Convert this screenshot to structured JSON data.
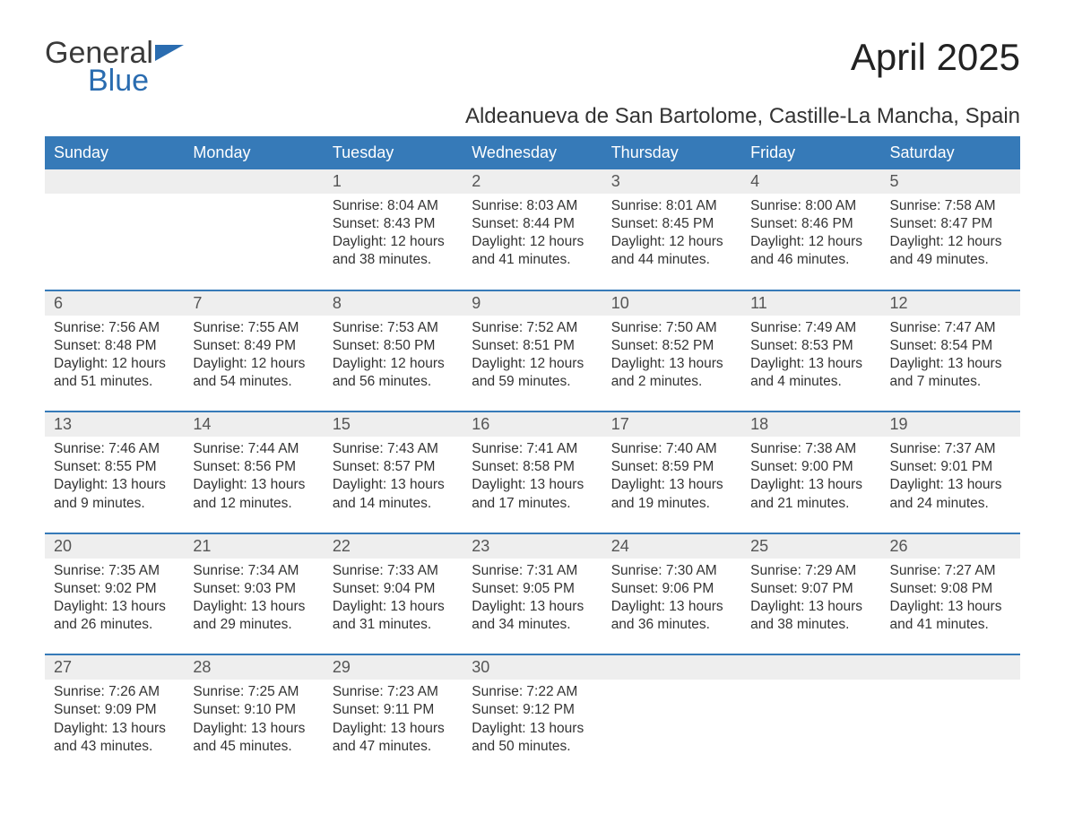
{
  "brand": {
    "part1": "General",
    "part2": "Blue"
  },
  "title": "April 2025",
  "location": "Aldeanueva de San Bartolome, Castille-La Mancha, Spain",
  "colors": {
    "header_bg": "#367ab8",
    "header_text": "#ffffff",
    "daynum_bg": "#eeeeee",
    "daynum_text": "#555555",
    "body_text": "#333333",
    "rule": "#367ab8",
    "page_bg": "#ffffff",
    "brand_blue": "#2a6cb0"
  },
  "typography": {
    "title_fontsize": 42,
    "location_fontsize": 24,
    "weekday_fontsize": 18,
    "daynum_fontsize": 18,
    "body_fontsize": 15.5
  },
  "weekdays": [
    "Sunday",
    "Monday",
    "Tuesday",
    "Wednesday",
    "Thursday",
    "Friday",
    "Saturday"
  ],
  "weeks": [
    [
      {
        "day": "",
        "sunrise": "",
        "sunset": "",
        "daylight1": "",
        "daylight2": ""
      },
      {
        "day": "",
        "sunrise": "",
        "sunset": "",
        "daylight1": "",
        "daylight2": ""
      },
      {
        "day": "1",
        "sunrise": "Sunrise: 8:04 AM",
        "sunset": "Sunset: 8:43 PM",
        "daylight1": "Daylight: 12 hours",
        "daylight2": "and 38 minutes."
      },
      {
        "day": "2",
        "sunrise": "Sunrise: 8:03 AM",
        "sunset": "Sunset: 8:44 PM",
        "daylight1": "Daylight: 12 hours",
        "daylight2": "and 41 minutes."
      },
      {
        "day": "3",
        "sunrise": "Sunrise: 8:01 AM",
        "sunset": "Sunset: 8:45 PM",
        "daylight1": "Daylight: 12 hours",
        "daylight2": "and 44 minutes."
      },
      {
        "day": "4",
        "sunrise": "Sunrise: 8:00 AM",
        "sunset": "Sunset: 8:46 PM",
        "daylight1": "Daylight: 12 hours",
        "daylight2": "and 46 minutes."
      },
      {
        "day": "5",
        "sunrise": "Sunrise: 7:58 AM",
        "sunset": "Sunset: 8:47 PM",
        "daylight1": "Daylight: 12 hours",
        "daylight2": "and 49 minutes."
      }
    ],
    [
      {
        "day": "6",
        "sunrise": "Sunrise: 7:56 AM",
        "sunset": "Sunset: 8:48 PM",
        "daylight1": "Daylight: 12 hours",
        "daylight2": "and 51 minutes."
      },
      {
        "day": "7",
        "sunrise": "Sunrise: 7:55 AM",
        "sunset": "Sunset: 8:49 PM",
        "daylight1": "Daylight: 12 hours",
        "daylight2": "and 54 minutes."
      },
      {
        "day": "8",
        "sunrise": "Sunrise: 7:53 AM",
        "sunset": "Sunset: 8:50 PM",
        "daylight1": "Daylight: 12 hours",
        "daylight2": "and 56 minutes."
      },
      {
        "day": "9",
        "sunrise": "Sunrise: 7:52 AM",
        "sunset": "Sunset: 8:51 PM",
        "daylight1": "Daylight: 12 hours",
        "daylight2": "and 59 minutes."
      },
      {
        "day": "10",
        "sunrise": "Sunrise: 7:50 AM",
        "sunset": "Sunset: 8:52 PM",
        "daylight1": "Daylight: 13 hours",
        "daylight2": "and 2 minutes."
      },
      {
        "day": "11",
        "sunrise": "Sunrise: 7:49 AM",
        "sunset": "Sunset: 8:53 PM",
        "daylight1": "Daylight: 13 hours",
        "daylight2": "and 4 minutes."
      },
      {
        "day": "12",
        "sunrise": "Sunrise: 7:47 AM",
        "sunset": "Sunset: 8:54 PM",
        "daylight1": "Daylight: 13 hours",
        "daylight2": "and 7 minutes."
      }
    ],
    [
      {
        "day": "13",
        "sunrise": "Sunrise: 7:46 AM",
        "sunset": "Sunset: 8:55 PM",
        "daylight1": "Daylight: 13 hours",
        "daylight2": "and 9 minutes."
      },
      {
        "day": "14",
        "sunrise": "Sunrise: 7:44 AM",
        "sunset": "Sunset: 8:56 PM",
        "daylight1": "Daylight: 13 hours",
        "daylight2": "and 12 minutes."
      },
      {
        "day": "15",
        "sunrise": "Sunrise: 7:43 AM",
        "sunset": "Sunset: 8:57 PM",
        "daylight1": "Daylight: 13 hours",
        "daylight2": "and 14 minutes."
      },
      {
        "day": "16",
        "sunrise": "Sunrise: 7:41 AM",
        "sunset": "Sunset: 8:58 PM",
        "daylight1": "Daylight: 13 hours",
        "daylight2": "and 17 minutes."
      },
      {
        "day": "17",
        "sunrise": "Sunrise: 7:40 AM",
        "sunset": "Sunset: 8:59 PM",
        "daylight1": "Daylight: 13 hours",
        "daylight2": "and 19 minutes."
      },
      {
        "day": "18",
        "sunrise": "Sunrise: 7:38 AM",
        "sunset": "Sunset: 9:00 PM",
        "daylight1": "Daylight: 13 hours",
        "daylight2": "and 21 minutes."
      },
      {
        "day": "19",
        "sunrise": "Sunrise: 7:37 AM",
        "sunset": "Sunset: 9:01 PM",
        "daylight1": "Daylight: 13 hours",
        "daylight2": "and 24 minutes."
      }
    ],
    [
      {
        "day": "20",
        "sunrise": "Sunrise: 7:35 AM",
        "sunset": "Sunset: 9:02 PM",
        "daylight1": "Daylight: 13 hours",
        "daylight2": "and 26 minutes."
      },
      {
        "day": "21",
        "sunrise": "Sunrise: 7:34 AM",
        "sunset": "Sunset: 9:03 PM",
        "daylight1": "Daylight: 13 hours",
        "daylight2": "and 29 minutes."
      },
      {
        "day": "22",
        "sunrise": "Sunrise: 7:33 AM",
        "sunset": "Sunset: 9:04 PM",
        "daylight1": "Daylight: 13 hours",
        "daylight2": "and 31 minutes."
      },
      {
        "day": "23",
        "sunrise": "Sunrise: 7:31 AM",
        "sunset": "Sunset: 9:05 PM",
        "daylight1": "Daylight: 13 hours",
        "daylight2": "and 34 minutes."
      },
      {
        "day": "24",
        "sunrise": "Sunrise: 7:30 AM",
        "sunset": "Sunset: 9:06 PM",
        "daylight1": "Daylight: 13 hours",
        "daylight2": "and 36 minutes."
      },
      {
        "day": "25",
        "sunrise": "Sunrise: 7:29 AM",
        "sunset": "Sunset: 9:07 PM",
        "daylight1": "Daylight: 13 hours",
        "daylight2": "and 38 minutes."
      },
      {
        "day": "26",
        "sunrise": "Sunrise: 7:27 AM",
        "sunset": "Sunset: 9:08 PM",
        "daylight1": "Daylight: 13 hours",
        "daylight2": "and 41 minutes."
      }
    ],
    [
      {
        "day": "27",
        "sunrise": "Sunrise: 7:26 AM",
        "sunset": "Sunset: 9:09 PM",
        "daylight1": "Daylight: 13 hours",
        "daylight2": "and 43 minutes."
      },
      {
        "day": "28",
        "sunrise": "Sunrise: 7:25 AM",
        "sunset": "Sunset: 9:10 PM",
        "daylight1": "Daylight: 13 hours",
        "daylight2": "and 45 minutes."
      },
      {
        "day": "29",
        "sunrise": "Sunrise: 7:23 AM",
        "sunset": "Sunset: 9:11 PM",
        "daylight1": "Daylight: 13 hours",
        "daylight2": "and 47 minutes."
      },
      {
        "day": "30",
        "sunrise": "Sunrise: 7:22 AM",
        "sunset": "Sunset: 9:12 PM",
        "daylight1": "Daylight: 13 hours",
        "daylight2": "and 50 minutes."
      },
      {
        "day": "",
        "sunrise": "",
        "sunset": "",
        "daylight1": "",
        "daylight2": ""
      },
      {
        "day": "",
        "sunrise": "",
        "sunset": "",
        "daylight1": "",
        "daylight2": ""
      },
      {
        "day": "",
        "sunrise": "",
        "sunset": "",
        "daylight1": "",
        "daylight2": ""
      }
    ]
  ]
}
